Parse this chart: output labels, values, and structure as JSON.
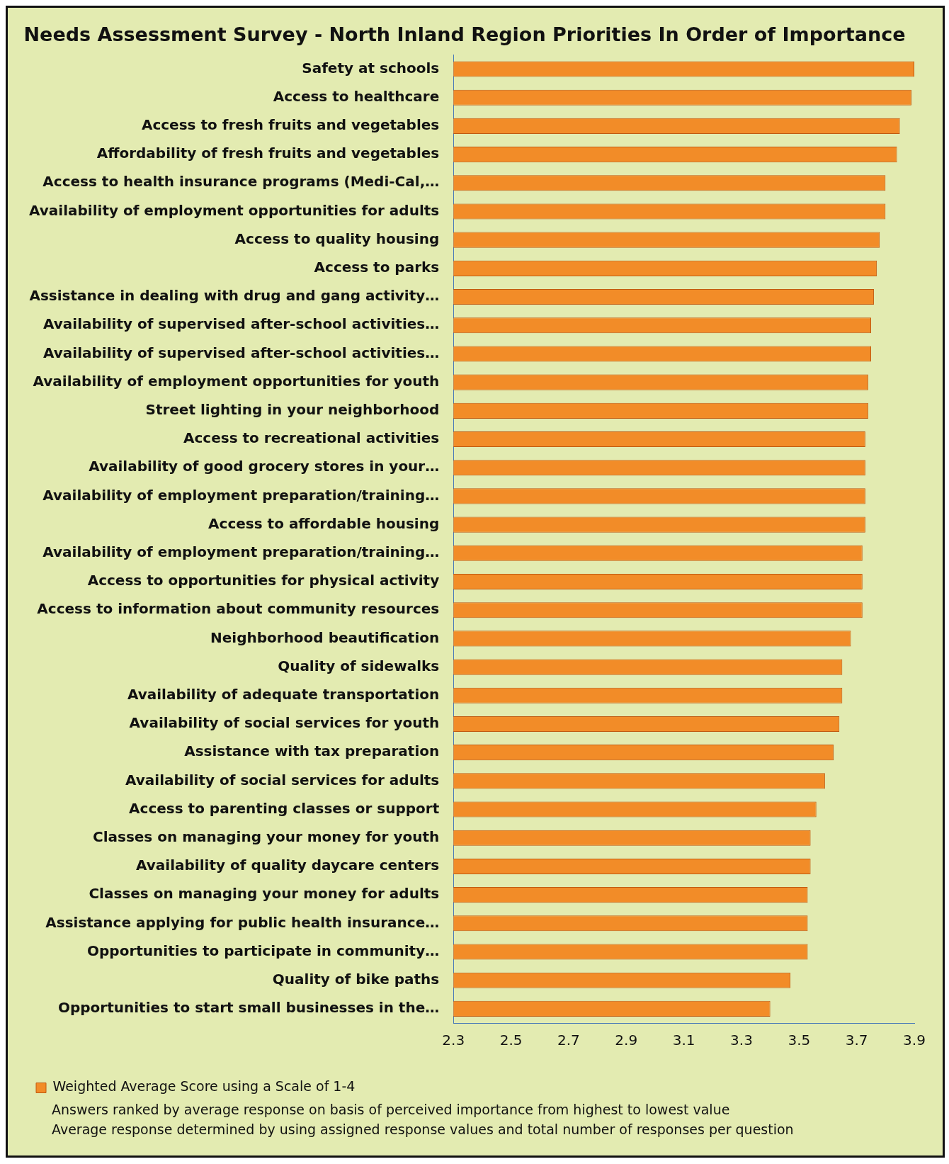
{
  "chart_data": {
    "type": "bar",
    "orientation": "horizontal",
    "title": "Needs Assessment Survey - North Inland Region Priorities In Order of Importance",
    "categories": [
      "Safety at schools",
      "Access to healthcare",
      "Access to fresh fruits and vegetables",
      "Affordability of fresh fruits and vegetables",
      "Access to health insurance programs (Medi-Cal,…",
      "Availability of employment opportunities for adults",
      "Access to quality housing",
      "Access to parks",
      "Assistance in dealing with drug and gang activity…",
      "Availability of supervised after-school activities…",
      "Availability of supervised after-school activities…",
      "Availability of employment opportunities for youth",
      "Street lighting in your neighborhood",
      "Access to recreational activities",
      "Availability of good grocery stores in your…",
      "Availability of employment preparation/training…",
      "Access to affordable housing",
      "Availability of employment preparation/training…",
      "Access to opportunities for physical activity",
      "Access to information about community resources",
      "Neighborhood beautification",
      "Quality of sidewalks",
      "Availability of adequate transportation",
      "Availability of social services for youth",
      "Assistance with tax preparation",
      "Availability of social services for adults",
      "Access to parenting classes or support",
      "Classes on managing your money for youth",
      "Availability of quality daycare centers",
      "Classes on managing your money for adults",
      "Assistance applying for public health insurance…",
      "Opportunities to participate in community…",
      "Quality of bike paths",
      "Opportunities to start small businesses in the…"
    ],
    "series": [
      {
        "name": "Weighted Average Score using a Scale of 1-4",
        "color": "#f28c28",
        "values": [
          3.9,
          3.89,
          3.85,
          3.84,
          3.8,
          3.8,
          3.78,
          3.77,
          3.76,
          3.75,
          3.75,
          3.74,
          3.74,
          3.73,
          3.73,
          3.73,
          3.73,
          3.72,
          3.72,
          3.72,
          3.68,
          3.65,
          3.65,
          3.64,
          3.62,
          3.59,
          3.56,
          3.54,
          3.54,
          3.53,
          3.53,
          3.53,
          3.47,
          3.4
        ]
      }
    ],
    "xlim": [
      2.3,
      3.9
    ],
    "xticks": [
      2.3,
      2.5,
      2.7,
      2.9,
      3.1,
      3.3,
      3.5,
      3.7,
      3.9
    ],
    "grid": false,
    "legend": "bottom",
    "annotations": [
      "Answers ranked by average response on basis of perceived importance from highest to lowest value",
      "Average response determined by using assigned response values and total number of responses per question"
    ]
  }
}
